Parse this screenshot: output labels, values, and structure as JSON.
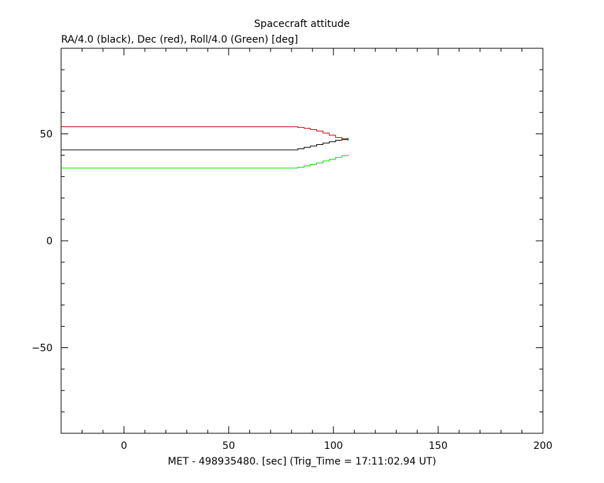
{
  "chart_data": {
    "type": "line",
    "title": "Spacecraft attitude",
    "ylabel": "RA/4.0 (black), Dec (red), Roll/4.0 (Green) [deg]",
    "xlabel": "MET - 498935480. [sec] (Trig_Time = 17:11:02.94 UT)",
    "xlim": [
      -30,
      200
    ],
    "ylim": [
      -90,
      90
    ],
    "x_ticks": [
      0,
      50,
      100,
      150,
      200
    ],
    "x_tick_labels": [
      "0",
      "50",
      "100",
      "150",
      "200"
    ],
    "y_ticks": [
      -50,
      0,
      50
    ],
    "y_tick_labels": [
      "−50",
      "0",
      "50"
    ],
    "grid": false,
    "legend": "none",
    "series": [
      {
        "color": "#000000",
        "step": true,
        "x": [
          -30,
          80,
          83,
          86,
          89,
          92,
          95,
          98,
          101,
          104,
          107
        ],
        "y": [
          42.5,
          42.5,
          43.0,
          43.7,
          44.3,
          45.0,
          45.7,
          46.3,
          47.0,
          47.6,
          48.1
        ]
      },
      {
        "color": "#cc0000",
        "step": true,
        "x": [
          -30,
          80,
          83,
          86,
          89,
          92,
          95,
          98,
          101,
          104,
          107
        ],
        "y": [
          53.3,
          53.3,
          53.0,
          52.6,
          52.0,
          51.3,
          50.4,
          49.4,
          48.3,
          47.3,
          46.8
        ]
      },
      {
        "color": "#00dd00",
        "step": true,
        "x": [
          -30,
          80,
          83,
          86,
          89,
          92,
          95,
          98,
          101,
          104,
          107
        ],
        "y": [
          34.0,
          34.0,
          34.4,
          35.0,
          35.7,
          36.4,
          37.3,
          38.1,
          39.0,
          39.8,
          40.3
        ]
      }
    ]
  }
}
